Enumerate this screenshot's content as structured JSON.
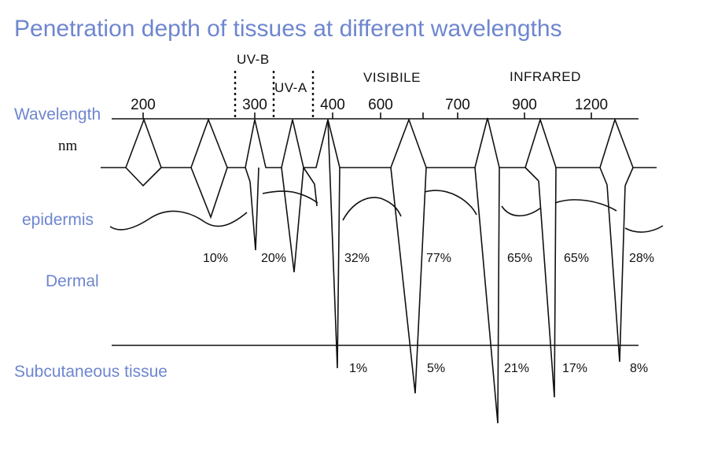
{
  "title": "Penetration depth of tissues at different wavelengths",
  "labels": {
    "wavelength": "Wavelength",
    "unit": "nm",
    "epidermis": "epidermis",
    "dermal": "Dermal",
    "subcutaneous": "Subcutaneous tissue"
  },
  "bands": {
    "uvb": "UV-B",
    "uva": "UV-A",
    "visible": "VISIBILE",
    "infrared": "INFRARED"
  },
  "ticks": [
    "200",
    "300",
    "400",
    "600",
    "700",
    "900",
    "1200"
  ],
  "dermis_percent": [
    "10%",
    "20%",
    "32%",
    "77%",
    "65%",
    "65%",
    "28%"
  ],
  "subcutaneous_percent": [
    "1%",
    "5%",
    "21%",
    "17%",
    "8%"
  ]
}
